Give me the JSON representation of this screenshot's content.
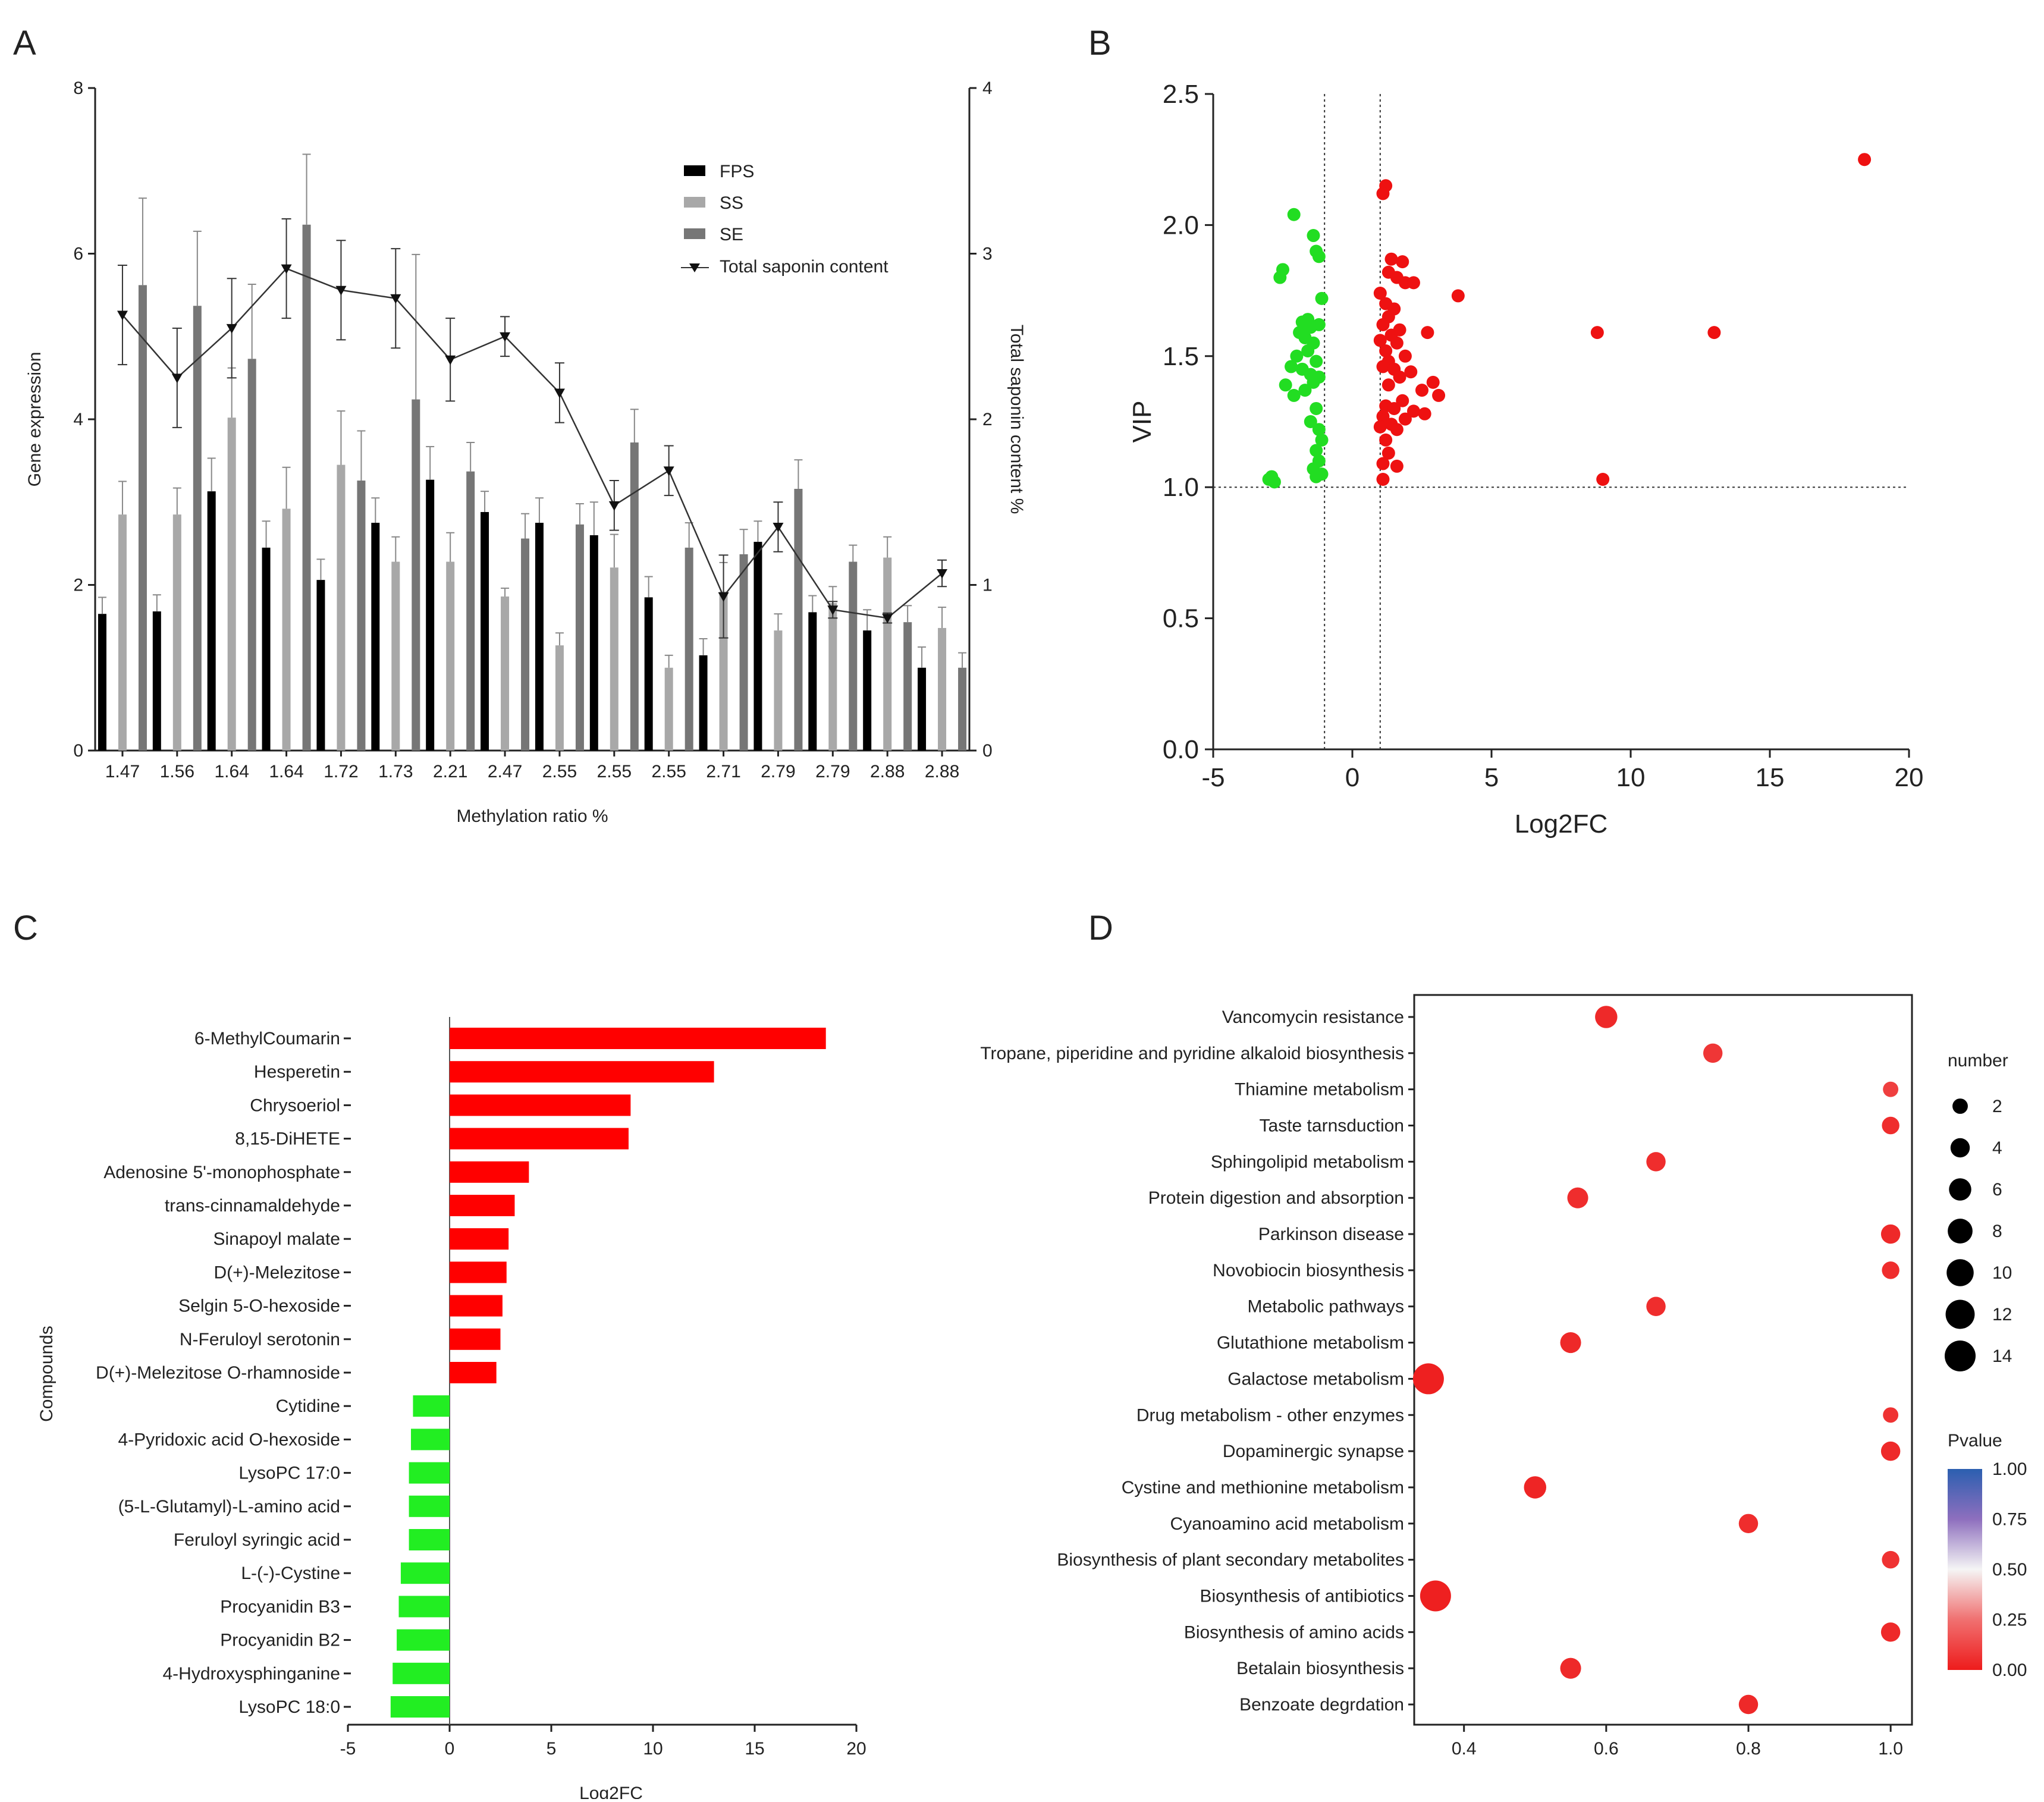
{
  "panels": {
    "a": "A",
    "b": "B",
    "c": "C",
    "d": "D"
  },
  "chart_data": [
    {
      "panel": "A",
      "type": "bar",
      "xlabel": "Methylation ratio %",
      "ylabel": "Gene expression",
      "y2label": "Total saponin content %",
      "ylim": [
        0,
        8
      ],
      "y2lim": [
        0,
        4
      ],
      "yticks": [
        "0",
        "2",
        "4",
        "6",
        "8"
      ],
      "y2ticks": [
        "0",
        "1",
        "2",
        "3",
        "4"
      ],
      "categories": [
        "1.47",
        "1.56",
        "1.64",
        "1.64",
        "1.72",
        "1.73",
        "2.21",
        "2.47",
        "2.55",
        "2.55",
        "2.55",
        "2.71",
        "2.79",
        "2.79",
        "2.88",
        "2.88"
      ],
      "series": [
        {
          "name": "FPS",
          "color": "#000000",
          "values": [
            1.65,
            1.68,
            3.13,
            2.45,
            2.06,
            2.75,
            3.27,
            2.88,
            2.75,
            2.6,
            1.85,
            1.15,
            2.52,
            1.67,
            1.45,
            1.0
          ],
          "errors": [
            0.2,
            0.2,
            0.4,
            0.32,
            0.25,
            0.3,
            0.4,
            0.25,
            0.3,
            0.4,
            0.25,
            0.2,
            0.25,
            0.2,
            0.25,
            0.25
          ]
        },
        {
          "name": "SS",
          "color": "#a8a8a8",
          "values": [
            2.85,
            2.85,
            4.02,
            2.92,
            3.45,
            2.28,
            2.28,
            1.86,
            1.27,
            2.21,
            1.0,
            1.92,
            1.45,
            1.78,
            2.33,
            1.48
          ],
          "errors": [
            0.4,
            0.32,
            0.6,
            0.5,
            0.65,
            0.3,
            0.35,
            0.1,
            0.15,
            0.4,
            0.15,
            0.35,
            0.2,
            0.2,
            0.25,
            0.25
          ]
        },
        {
          "name": "SE",
          "color": "#767676",
          "values": [
            5.62,
            5.37,
            4.73,
            6.35,
            3.26,
            4.24,
            3.37,
            2.56,
            2.73,
            3.72,
            2.45,
            2.37,
            3.16,
            2.28,
            1.55,
            1.0
          ],
          "errors": [
            1.05,
            0.9,
            0.9,
            0.85,
            0.6,
            1.75,
            0.35,
            0.3,
            0.25,
            0.4,
            0.3,
            0.3,
            0.35,
            0.2,
            0.2,
            0.18
          ]
        }
      ],
      "line": {
        "name": "Total saponin content",
        "values": [
          2.63,
          2.25,
          2.55,
          2.91,
          2.78,
          2.73,
          2.36,
          2.5,
          2.16,
          1.48,
          1.69,
          0.93,
          1.35,
          0.85,
          0.8,
          1.07
        ],
        "errors": [
          0.3,
          0.3,
          0.3,
          0.3,
          0.3,
          0.3,
          0.25,
          0.12,
          0.18,
          0.15,
          0.15,
          0.25,
          0.15,
          0.05,
          0.03,
          0.08
        ]
      },
      "legend": [
        "FPS",
        "SS",
        "SE",
        "Total saponin content"
      ],
      "legend_position": "top-right"
    },
    {
      "panel": "B",
      "type": "scatter",
      "xlabel": "Log2FC",
      "ylabel": "VIP",
      "xlim": [
        -5,
        20
      ],
      "ylim": [
        0,
        2.5
      ],
      "xticks": [
        "-5",
        "0",
        "5",
        "10",
        "15",
        "20"
      ],
      "yticks": [
        "0.0",
        "0.5",
        "1.0",
        "1.5",
        "2.0",
        "2.5"
      ],
      "thresholds": {
        "x": [
          -1,
          1
        ],
        "y": 1.0
      },
      "down_color": "#22dd22",
      "up_color": "#ee1111",
      "down_points": [
        [
          -2.1,
          2.04
        ],
        [
          -1.4,
          1.96
        ],
        [
          -1.3,
          1.9
        ],
        [
          -1.2,
          1.88
        ],
        [
          -2.5,
          1.83
        ],
        [
          -2.6,
          1.8
        ],
        [
          -1.1,
          1.72
        ],
        [
          -1.8,
          1.63
        ],
        [
          -1.6,
          1.64
        ],
        [
          -1.5,
          1.61
        ],
        [
          -1.2,
          1.62
        ],
        [
          -1.9,
          1.59
        ],
        [
          -1.7,
          1.57
        ],
        [
          -1.4,
          1.55
        ],
        [
          -2.0,
          1.5
        ],
        [
          -1.6,
          1.52
        ],
        [
          -1.3,
          1.48
        ],
        [
          -2.2,
          1.46
        ],
        [
          -1.8,
          1.45
        ],
        [
          -1.5,
          1.43
        ],
        [
          -1.2,
          1.42
        ],
        [
          -1.4,
          1.4
        ],
        [
          -2.4,
          1.39
        ],
        [
          -1.7,
          1.37
        ],
        [
          -2.1,
          1.35
        ],
        [
          -1.3,
          1.3
        ],
        [
          -1.5,
          1.25
        ],
        [
          -1.2,
          1.22
        ],
        [
          -1.1,
          1.18
        ],
        [
          -1.3,
          1.14
        ],
        [
          -1.2,
          1.1
        ],
        [
          -1.4,
          1.07
        ],
        [
          -1.1,
          1.05
        ],
        [
          -1.3,
          1.04
        ],
        [
          -2.9,
          1.04
        ],
        [
          -3.0,
          1.03
        ],
        [
          -2.8,
          1.02
        ]
      ],
      "up_points": [
        [
          1.2,
          2.15
        ],
        [
          1.1,
          2.12
        ],
        [
          1.4,
          1.87
        ],
        [
          1.8,
          1.86
        ],
        [
          1.3,
          1.82
        ],
        [
          1.6,
          1.8
        ],
        [
          1.9,
          1.78
        ],
        [
          2.2,
          1.78
        ],
        [
          3.8,
          1.73
        ],
        [
          1.0,
          1.74
        ],
        [
          1.2,
          1.7
        ],
        [
          1.5,
          1.68
        ],
        [
          1.3,
          1.65
        ],
        [
          1.1,
          1.62
        ],
        [
          1.7,
          1.6
        ],
        [
          2.7,
          1.59
        ],
        [
          1.4,
          1.58
        ],
        [
          8.8,
          1.59
        ],
        [
          13.0,
          1.59
        ],
        [
          1.0,
          1.56
        ],
        [
          1.6,
          1.55
        ],
        [
          1.2,
          1.52
        ],
        [
          1.9,
          1.5
        ],
        [
          1.3,
          1.48
        ],
        [
          1.1,
          1.46
        ],
        [
          1.5,
          1.45
        ],
        [
          2.1,
          1.44
        ],
        [
          1.7,
          1.42
        ],
        [
          2.9,
          1.4
        ],
        [
          1.3,
          1.39
        ],
        [
          2.5,
          1.37
        ],
        [
          3.1,
          1.35
        ],
        [
          1.8,
          1.33
        ],
        [
          1.2,
          1.31
        ],
        [
          1.5,
          1.3
        ],
        [
          2.2,
          1.29
        ],
        [
          2.6,
          1.28
        ],
        [
          1.1,
          1.27
        ],
        [
          1.9,
          1.26
        ],
        [
          1.4,
          1.24
        ],
        [
          1.0,
          1.23
        ],
        [
          1.6,
          1.22
        ],
        [
          1.2,
          1.18
        ],
        [
          1.3,
          1.13
        ],
        [
          1.1,
          1.09
        ],
        [
          1.6,
          1.08
        ],
        [
          1.1,
          1.03
        ],
        [
          9.0,
          1.03
        ],
        [
          18.4,
          2.25
        ]
      ]
    },
    {
      "panel": "C",
      "type": "bar",
      "orientation": "horizontal",
      "xlabel": "Log2FC",
      "ylabel": "Compounds",
      "xlim": [
        -5,
        20
      ],
      "xticks": [
        "-5",
        "0",
        "5",
        "10",
        "15",
        "20"
      ],
      "categories": [
        "6-MethylCoumarin",
        "Hesperetin",
        "Chrysoeriol",
        "8,15-DiHETE",
        "Adenosine 5'-monophosphate",
        "trans-cinnamaldehyde",
        "Sinapoyl malate",
        "D(+)-Melezitose",
        "Selgin 5-O-hexoside",
        "N-Feruloyl serotonin",
        "D(+)-Melezitose O-rhamnoside",
        "Cytidine",
        "4-Pyridoxic acid O-hexoside",
        "LysoPC 17:0",
        "(5-L-Glutamyl)-L-amino acid",
        "Feruloyl syringic acid",
        "L-(-)-Cystine",
        "Procyanidin B3",
        "Procyanidin B2",
        "4-Hydroxysphinganine",
        "LysoPC 18:0"
      ],
      "values": [
        18.5,
        13.0,
        8.9,
        8.8,
        3.9,
        3.2,
        2.9,
        2.8,
        2.6,
        2.5,
        2.3,
        -1.8,
        -1.9,
        -2.0,
        -2.0,
        -2.0,
        -2.4,
        -2.5,
        -2.6,
        -2.8,
        -2.9
      ],
      "up_color": "#ff0000",
      "down_color": "#22ee22"
    },
    {
      "panel": "D",
      "type": "scatter",
      "subtype": "bubble",
      "xlim": [
        0.33,
        1.03
      ],
      "xticks": [
        "0.4",
        "0.6",
        "0.8",
        "1.0"
      ],
      "pathways": [
        "Vancomycin resistance",
        "Tropane, piperidine and pyridine alkaloid biosynthesis",
        "Thiamine metabolism",
        "Taste tarnsduction",
        "Sphingolipid metabolism",
        "Protein digestion and absorption",
        "Parkinson disease",
        "Novobiocin biosynthesis",
        "Metabolic pathways",
        "Glutathione metabolism",
        "Galactose metabolism",
        "Drug metabolism - other enzymes",
        "Dopaminergic synapse",
        "Cystine and methionine metabolism",
        "Cyanoamino acid metabolism",
        "Biosynthesis of plant secondary metabolites",
        "Biosynthesis of antibiotics",
        "Biosynthesis of amino acids",
        "Betalain biosynthesis",
        "Benzoate degrdation"
      ],
      "x": [
        0.6,
        0.75,
        1.0,
        1.0,
        0.67,
        0.56,
        1.0,
        1.0,
        0.67,
        0.55,
        0.35,
        1.0,
        1.0,
        0.5,
        0.8,
        1.0,
        0.36,
        1.0,
        0.55,
        0.8
      ],
      "number": [
        6,
        4,
        2,
        3,
        4,
        5,
        4,
        3,
        4,
        5,
        14,
        2,
        4,
        6,
        4,
        3,
        14,
        4,
        5,
        4
      ],
      "pvalue": [
        0.03,
        0.06,
        0.08,
        0.04,
        0.04,
        0.04,
        0.03,
        0.04,
        0.04,
        0.03,
        0.01,
        0.05,
        0.03,
        0.02,
        0.04,
        0.05,
        0.01,
        0.03,
        0.03,
        0.03
      ],
      "size_legend": {
        "title": "number",
        "values": [
          2,
          4,
          6,
          8,
          10,
          12,
          14
        ],
        "labels": [
          "2",
          "4",
          "6",
          "8",
          "10",
          "12",
          "14"
        ]
      },
      "color_legend": {
        "title": "Pvalue",
        "labels": [
          "1.00",
          "0.75",
          "0.50",
          "0.25",
          "0.00"
        ],
        "colors": [
          "#2b5fb0",
          "#8e6fbe",
          "#f5f5f5",
          "#f07070",
          "#ee1c1c"
        ]
      }
    }
  ]
}
